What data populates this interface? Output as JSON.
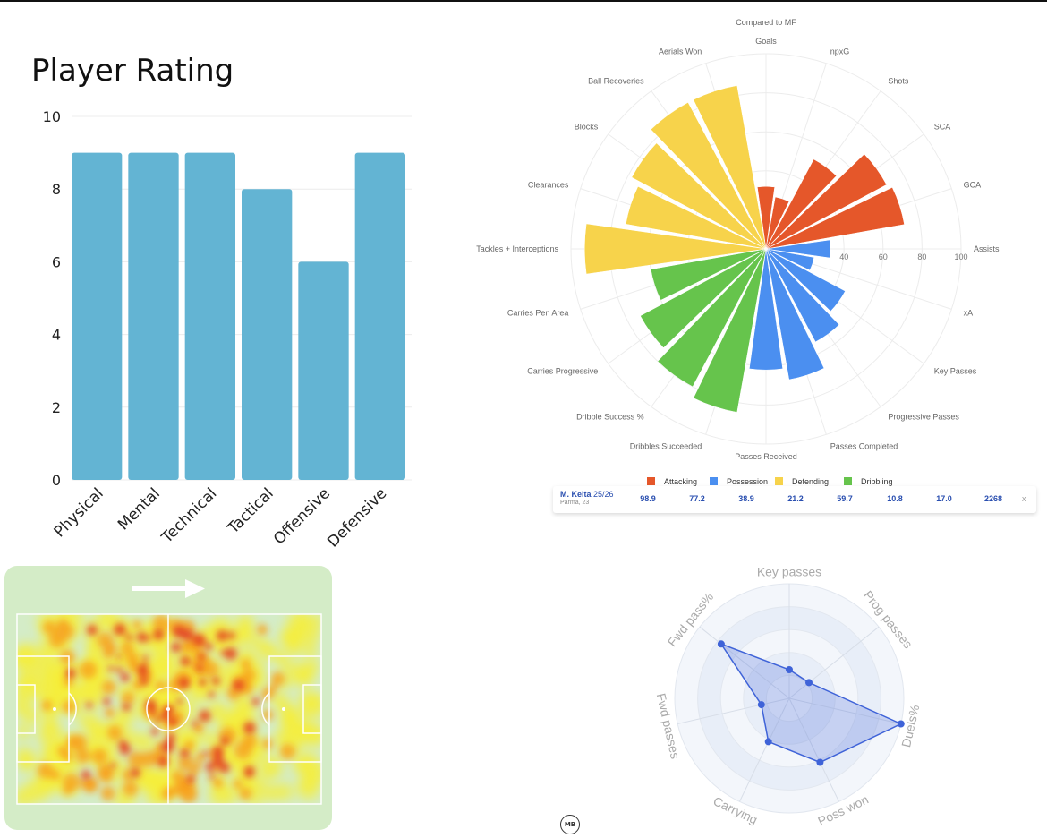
{
  "bar_title": "Player Rating",
  "radar_title": "Compared to MF",
  "player_row": {
    "name": "M. Keita",
    "season": "25/26",
    "club": "Parma, 23",
    "values": [
      "98.9",
      "77.2",
      "38.9",
      "21.2",
      "59.7",
      "10.8",
      "17.0",
      "2268"
    ],
    "close": "x"
  },
  "logo_text": "MB",
  "chart_data": [
    {
      "type": "bar",
      "title": "Player Rating",
      "categories": [
        "Physical",
        "Mental",
        "Technical",
        "Tactical",
        "Offensive",
        "Defensive"
      ],
      "values": [
        9,
        9,
        9,
        8,
        6,
        9
      ],
      "ylim": [
        0,
        10
      ],
      "yticks": [
        0,
        2,
        4,
        6,
        8,
        10
      ],
      "bar_color": "#63b4d3",
      "grid": true
    },
    {
      "type": "polar-bar",
      "title": "Compared to MF",
      "categories": [
        "Goals",
        "npxG",
        "Shots",
        "SCA",
        "GCA",
        "Assists",
        "xA",
        "Key Passes",
        "Progressive Passes",
        "Passes Completed",
        "Passes Received",
        "Dribbles Succeeded",
        "Dribble Success %",
        "Carries Progressive",
        "Carries Pen Area",
        "Tackles + Interceptions",
        "Clearances",
        "Blocks",
        "Ball Recoveries",
        "Aerials Won"
      ],
      "groups": [
        "Attacking",
        "Attacking",
        "Attacking",
        "Attacking",
        "Attacking",
        "Possession",
        "Possession",
        "Possession",
        "Possession",
        "Possession",
        "Possession",
        "Dribbling",
        "Dribbling",
        "Dribbling",
        "Dribbling",
        "Defending",
        "Defending",
        "Defending",
        "Defending",
        "Defending"
      ],
      "values": [
        32,
        27,
        52,
        70,
        72,
        33,
        25,
        46,
        54,
        68,
        62,
        85,
        80,
        73,
        60,
        93,
        73,
        78,
        85,
        85
      ],
      "rticks": [
        "40",
        "60",
        "80",
        "100"
      ],
      "legend": [
        {
          "label": "Attacking",
          "color": "#e5572a"
        },
        {
          "label": "Possession",
          "color": "#4b8ff0"
        },
        {
          "label": "Defending",
          "color": "#f7d34b"
        },
        {
          "label": "Dribbling",
          "color": "#66c44c"
        }
      ]
    },
    {
      "type": "radar",
      "axes": [
        "Key passes",
        "Prog passes",
        "Duels%",
        "Poss won",
        "Carrying",
        "Fwd passes",
        "Fwd pass%"
      ],
      "values": [
        0.25,
        0.22,
        1.0,
        0.62,
        0.42,
        0.25,
        0.76
      ],
      "color": "#3f63d8"
    }
  ]
}
